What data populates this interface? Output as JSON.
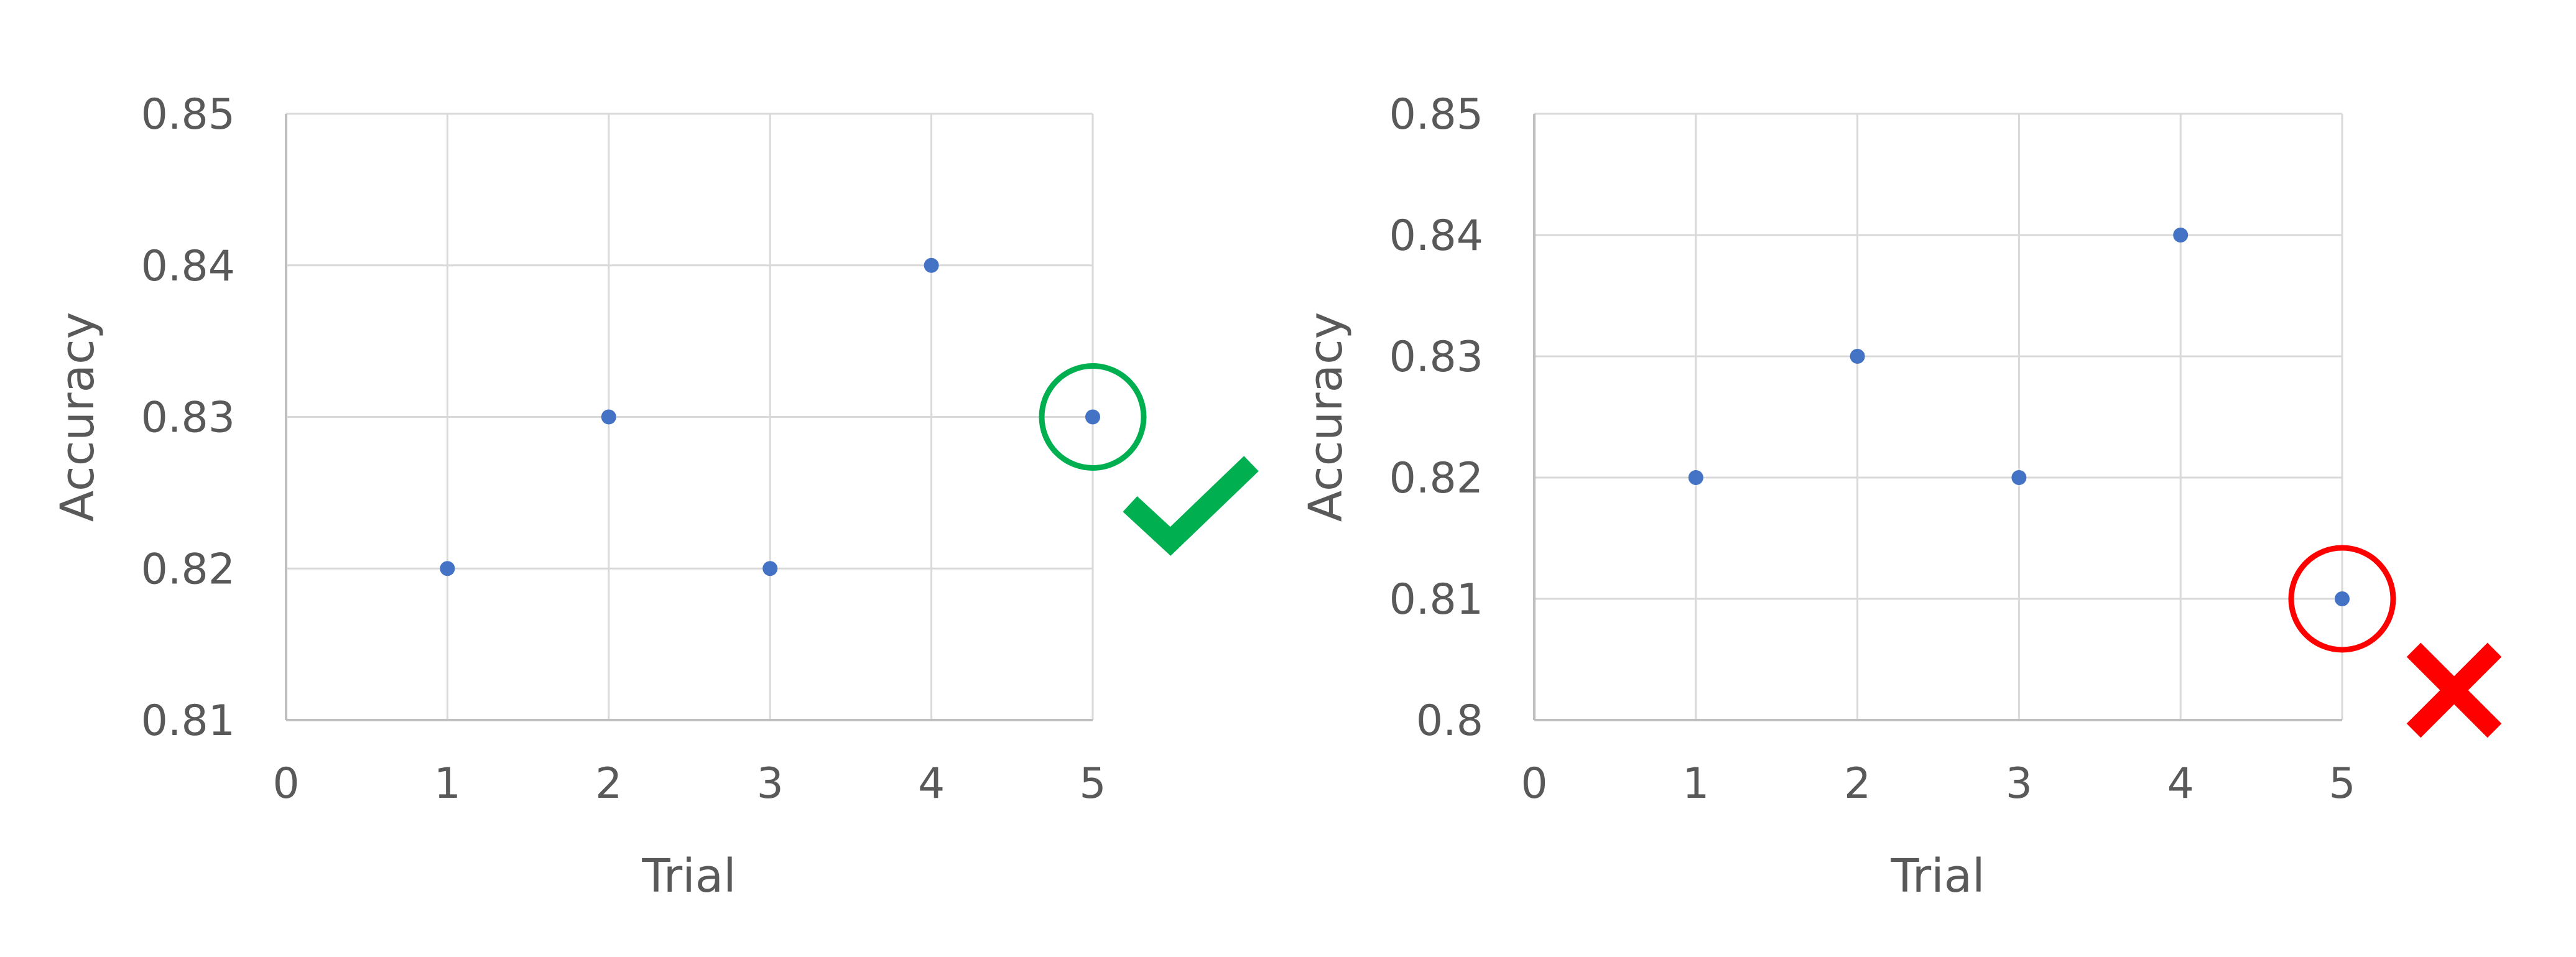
{
  "chart_data": [
    {
      "type": "scatter",
      "title": "",
      "xlabel": "Trial",
      "ylabel": "Accuracy",
      "x": [
        1,
        2,
        3,
        4,
        5
      ],
      "y": [
        0.82,
        0.83,
        0.82,
        0.84,
        0.83
      ],
      "xlim": [
        0,
        5
      ],
      "ylim": [
        0.81,
        0.85
      ],
      "xticks": [
        "0",
        "1",
        "2",
        "3",
        "4",
        "5"
      ],
      "yticks": [
        "0.81",
        "0.82",
        "0.83",
        "0.84",
        "0.85"
      ],
      "grid": true,
      "point_color": "#4472c4",
      "highlight": {
        "index": 4,
        "color": "#00b050",
        "icon": "check-mark-icon"
      }
    },
    {
      "type": "scatter",
      "title": "",
      "xlabel": "Trial",
      "ylabel": "Accuracy",
      "x": [
        1,
        2,
        3,
        4,
        5
      ],
      "y": [
        0.82,
        0.83,
        0.82,
        0.84,
        0.81
      ],
      "xlim": [
        0,
        5
      ],
      "ylim": [
        0.8,
        0.85
      ],
      "xticks": [
        "0",
        "1",
        "2",
        "3",
        "4",
        "5"
      ],
      "yticks": [
        "0.8",
        "0.81",
        "0.82",
        "0.83",
        "0.84",
        "0.85"
      ],
      "grid": true,
      "point_color": "#4472c4",
      "highlight": {
        "index": 4,
        "color": "#ff0000",
        "icon": "cross-mark-icon"
      }
    }
  ]
}
